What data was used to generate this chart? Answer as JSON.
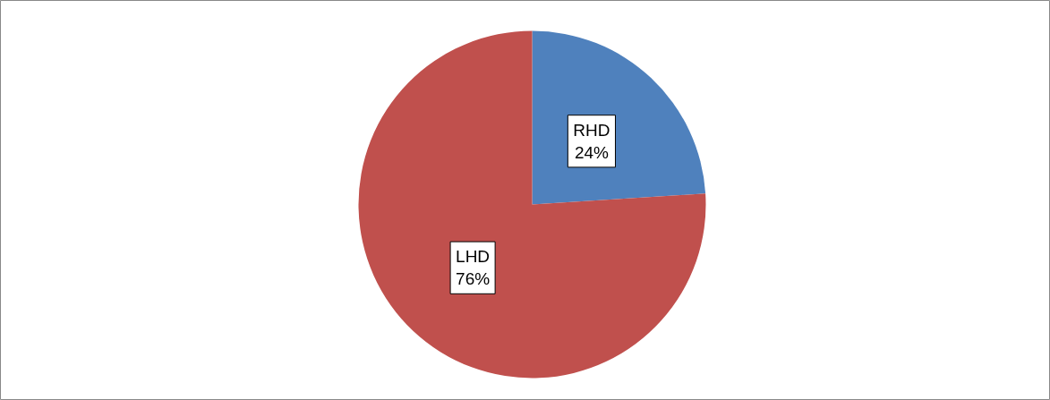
{
  "chart_data": {
    "type": "pie",
    "categories": [
      "RHD",
      "LHD"
    ],
    "values": [
      24,
      76
    ],
    "colors": [
      "#4f81bd",
      "#c0504d"
    ],
    "value_labels": [
      "24%",
      "76%"
    ]
  }
}
